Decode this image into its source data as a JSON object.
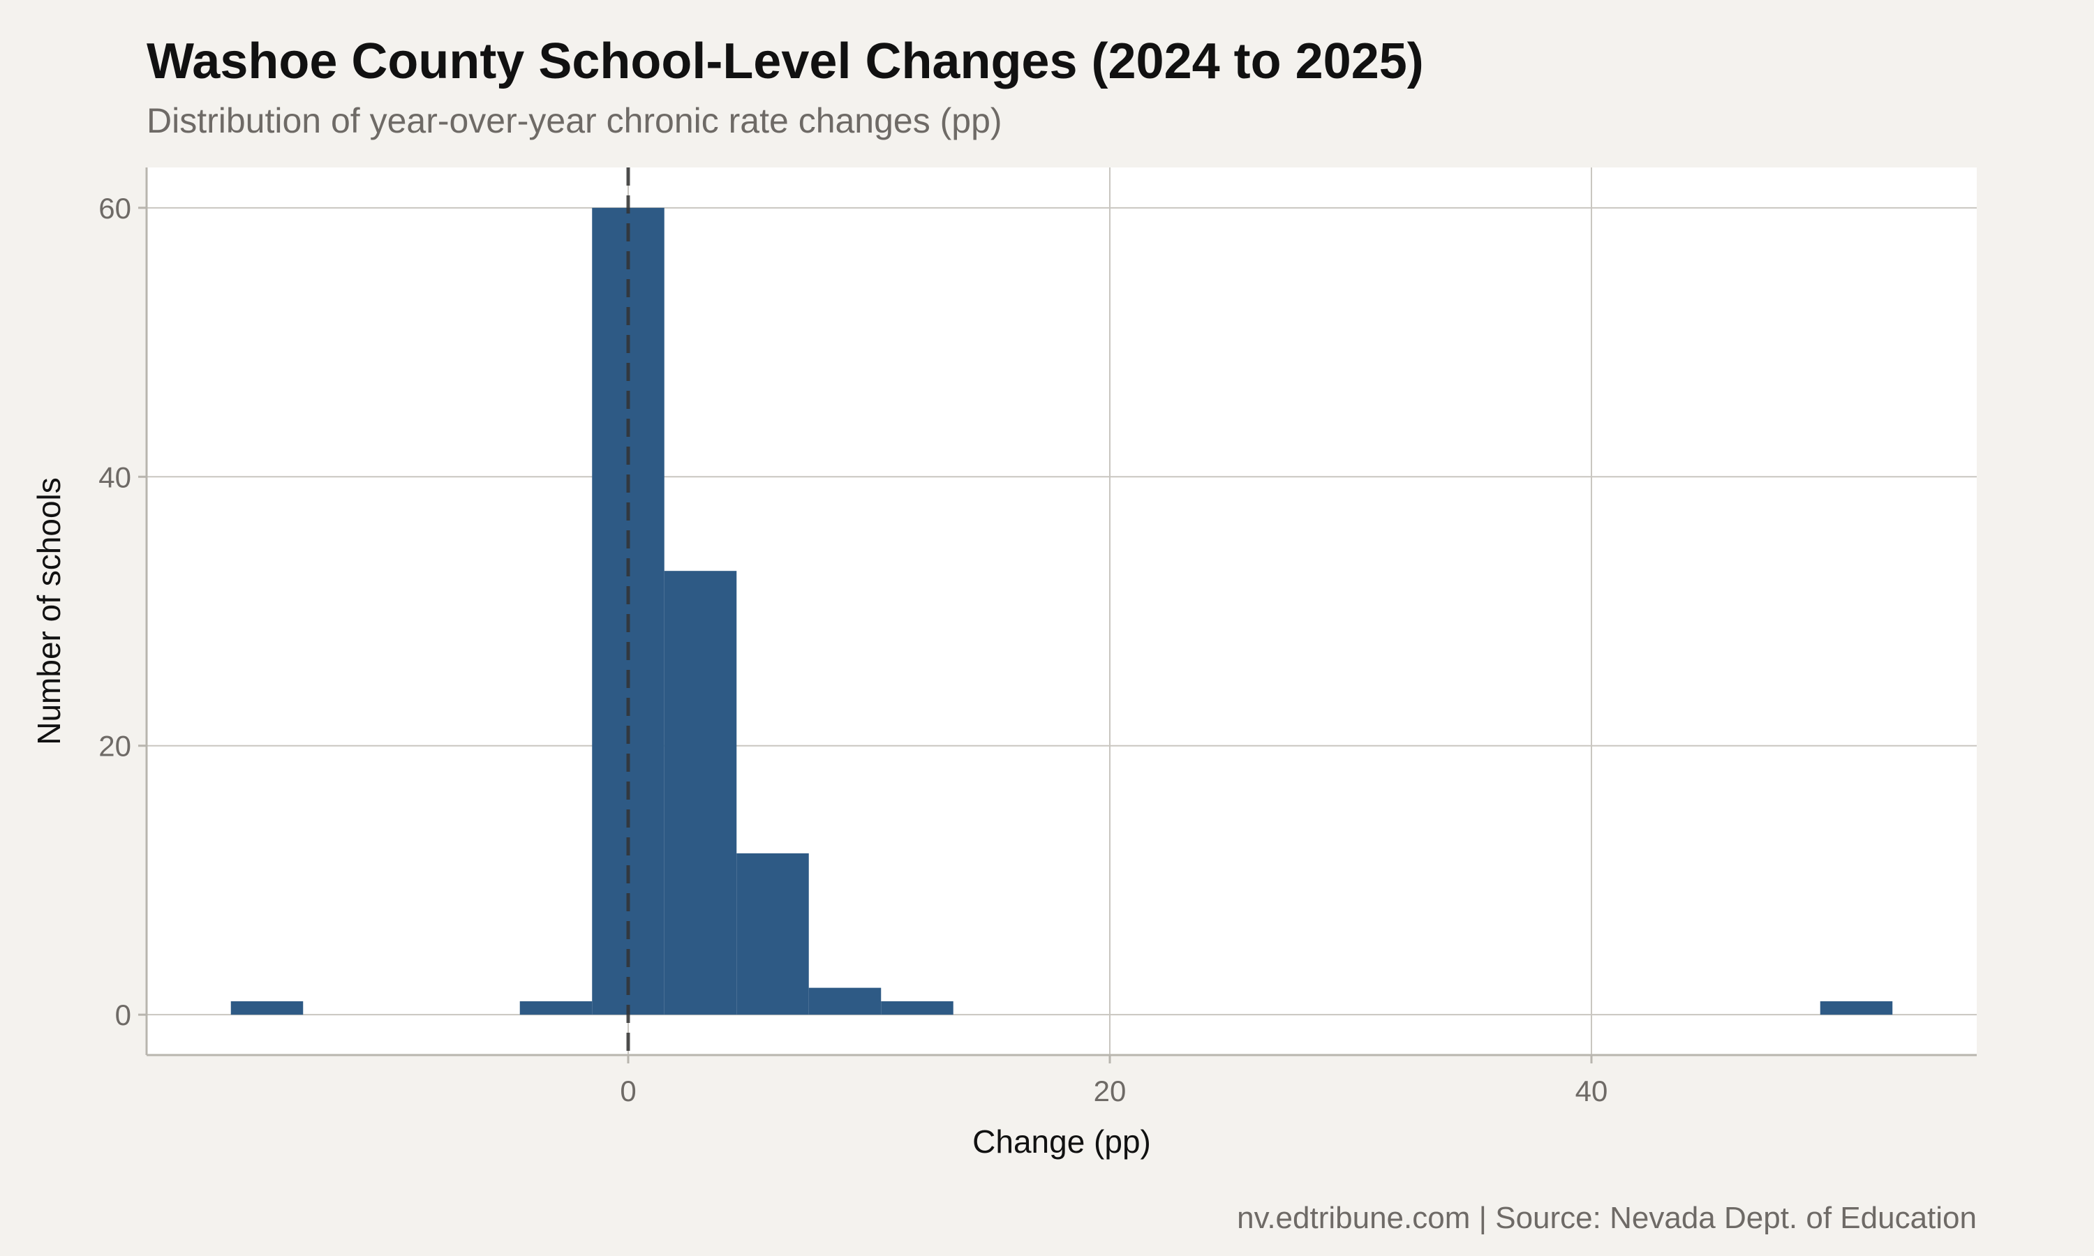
{
  "chart_data": {
    "type": "bar",
    "title": "Washoe County School-Level Changes (2024 to 2025)",
    "subtitle": "Distribution of year-over-year chronic rate changes (pp)",
    "xlabel": "Change (pp)",
    "ylabel": "Number of schools",
    "caption": "nv.edtribune.com | Source: Nevada Dept. of Education",
    "xlim": [
      -20,
      56
    ],
    "ylim": [
      -3,
      63
    ],
    "x_ticks": [
      0,
      20,
      40
    ],
    "y_ticks": [
      0,
      20,
      40,
      60
    ],
    "reference_line_x": 0,
    "bar_color": "#2e5a85",
    "grid": true,
    "bins": [
      {
        "x0": -16.5,
        "x1": -13.5,
        "count": 1
      },
      {
        "x0": -4.5,
        "x1": -1.5,
        "count": 1
      },
      {
        "x0": -1.5,
        "x1": 1.5,
        "count": 60
      },
      {
        "x0": 1.5,
        "x1": 4.5,
        "count": 33
      },
      {
        "x0": 4.5,
        "x1": 7.5,
        "count": 12
      },
      {
        "x0": 7.5,
        "x1": 10.5,
        "count": 2
      },
      {
        "x0": 10.5,
        "x1": 13.5,
        "count": 1
      },
      {
        "x0": 49.5,
        "x1": 52.5,
        "count": 1
      }
    ]
  }
}
